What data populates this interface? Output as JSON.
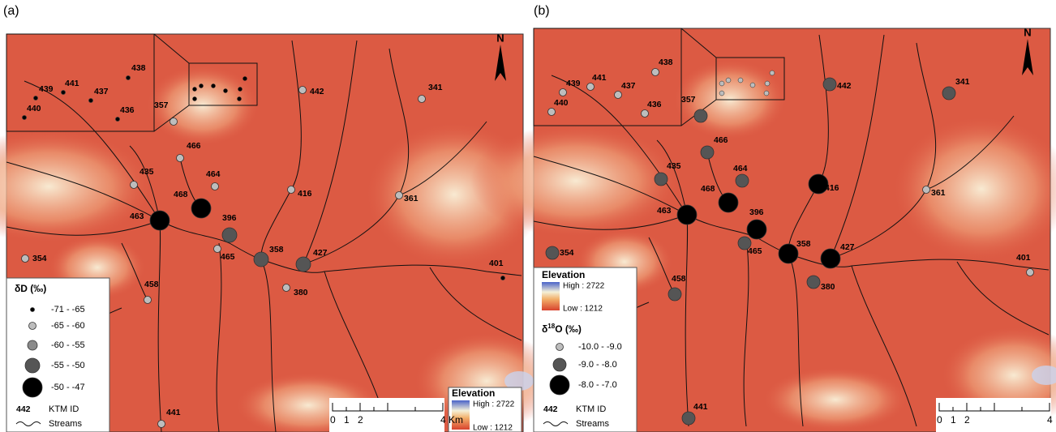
{
  "panels": [
    {
      "label": "(a)",
      "north": "N",
      "sites": [
        {
          "id": "438",
          "class": 0
        },
        {
          "id": "439",
          "class": 0
        },
        {
          "id": "441",
          "class": 0
        },
        {
          "id": "437",
          "class": 0
        },
        {
          "id": "436",
          "class": 0
        },
        {
          "id": "440",
          "class": 0
        },
        {
          "id": "357",
          "class": 1
        },
        {
          "id": "442",
          "class": 1
        },
        {
          "id": "341",
          "class": 1
        },
        {
          "id": "466",
          "class": 1
        },
        {
          "id": "435",
          "class": 1
        },
        {
          "id": "464",
          "class": 1
        },
        {
          "id": "416",
          "class": 1
        },
        {
          "id": "361",
          "class": 1
        },
        {
          "id": "468",
          "class": 4
        },
        {
          "id": "463",
          "class": 4
        },
        {
          "id": "396",
          "class": 3
        },
        {
          "id": "465",
          "class": 1
        },
        {
          "id": "358",
          "class": 3
        },
        {
          "id": "427",
          "class": 3
        },
        {
          "id": "354",
          "class": 1
        },
        {
          "id": "380",
          "class": 1
        },
        {
          "id": "401",
          "class": 0
        },
        {
          "id": "458",
          "class": 1
        },
        {
          "id": "441",
          "class": 1
        }
      ],
      "legend": {
        "title": "δD (‰)",
        "classes": [
          "-71 - -65",
          "-65 - -60",
          "-60 - -55",
          "-55 - -50",
          "-50 - -47"
        ],
        "marker_colors": [
          "#000000",
          "#bdbdbd",
          "#8a8a8a",
          "#555555",
          "#000000"
        ],
        "id_example": "442",
        "id_text": "KTM ID",
        "streams": "Streams"
      },
      "elevation": {
        "title": "Elevation",
        "high": "High : 2722",
        "low": "Low : 1212"
      },
      "scale": [
        "0",
        "1",
        "2",
        "4 Km"
      ]
    },
    {
      "label": "(b)",
      "north": "N",
      "sites": [
        {
          "id": "438",
          "class": 0
        },
        {
          "id": "439",
          "class": 0
        },
        {
          "id": "441",
          "class": 0
        },
        {
          "id": "437",
          "class": 0
        },
        {
          "id": "436",
          "class": 0
        },
        {
          "id": "440",
          "class": 0
        },
        {
          "id": "357",
          "class": 1
        },
        {
          "id": "442",
          "class": 1
        },
        {
          "id": "341",
          "class": 1
        },
        {
          "id": "466",
          "class": 1
        },
        {
          "id": "435",
          "class": 1
        },
        {
          "id": "464",
          "class": 1
        },
        {
          "id": "416",
          "class": 2
        },
        {
          "id": "361",
          "class": 0
        },
        {
          "id": "468",
          "class": 2
        },
        {
          "id": "463",
          "class": 2
        },
        {
          "id": "396",
          "class": 2
        },
        {
          "id": "465",
          "class": 1
        },
        {
          "id": "358",
          "class": 2
        },
        {
          "id": "427",
          "class": 2
        },
        {
          "id": "354",
          "class": 1
        },
        {
          "id": "380",
          "class": 1
        },
        {
          "id": "401",
          "class": 0
        },
        {
          "id": "458",
          "class": 1
        },
        {
          "id": "441",
          "class": 1
        }
      ],
      "legend": {
        "title": {
          "pre": "δ",
          "sup": "18",
          "post": "O (‰)"
        },
        "classes": [
          "-10.0 - -9.0",
          "-9.0 - -8.0",
          "-8.0 - -7.0"
        ],
        "marker_colors": [
          "#bdbdbd",
          "#555555",
          "#000000"
        ],
        "id_example": "442",
        "id_text": "KTM ID",
        "streams": "Streams"
      },
      "elevation": {
        "title": "Elevation",
        "high": "High : 2722",
        "low": "Low : 1212"
      },
      "scale": [
        "0",
        "1",
        "2",
        "4 Km"
      ]
    }
  ]
}
